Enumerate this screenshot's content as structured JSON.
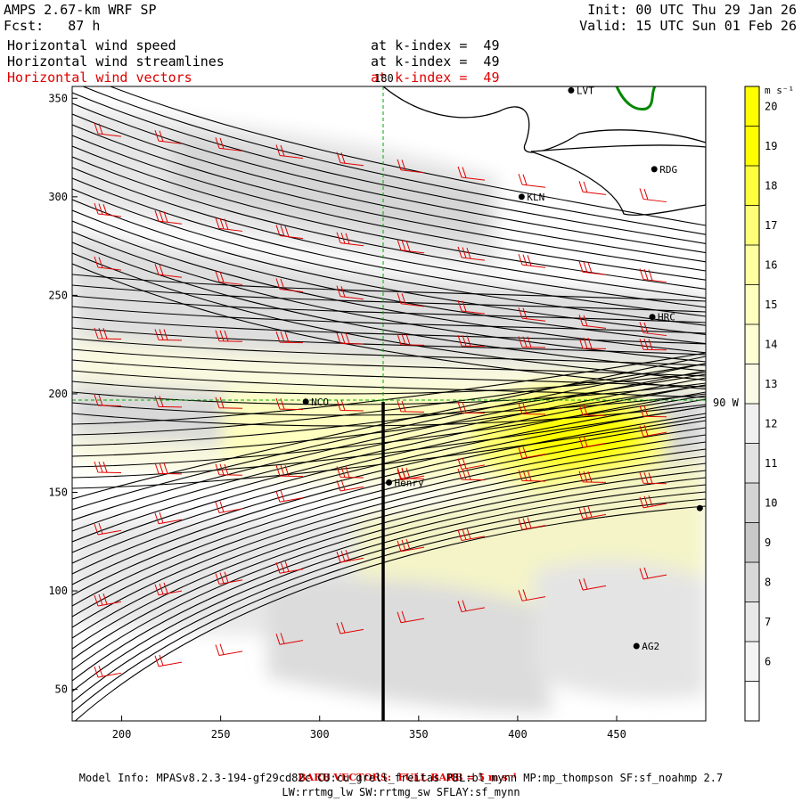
{
  "header": {
    "model": "AMPS 2.67-km WRF SP",
    "init": "Init: 00 UTC Thu 29 Jan 26",
    "fcst": "Fcst:   87 h",
    "valid": "Valid: 15 UTC Sun 01 Feb 26",
    "line1_name": "Horizontal wind speed",
    "line1_level": "at k-index =  49",
    "line2_name": "Horizontal wind streamlines",
    "line2_level": "at k-index =  49",
    "line3_name": "Horizontal wind vectors",
    "line3_level": "at k-index =  49"
  },
  "map": {
    "x_ticks": [
      "200",
      "250",
      "300",
      "350",
      "400",
      "450"
    ],
    "y_ticks": [
      "350",
      "300",
      "250",
      "200",
      "150",
      "100",
      "50"
    ],
    "meridian_label": "180",
    "parallel_label": "90 W",
    "stations": [
      {
        "name": "LVT",
        "x": 427,
        "y": 354
      },
      {
        "name": "RDG",
        "x": 469,
        "y": 314
      },
      {
        "name": "KLN",
        "x": 402,
        "y": 300
      },
      {
        "name": "HRC",
        "x": 468,
        "y": 239
      },
      {
        "name": "NCO",
        "x": 293,
        "y": 196
      },
      {
        "name": "Henry",
        "x": 335,
        "y": 155
      },
      {
        "name": "AG2",
        "x": 460,
        "y": 72
      },
      {
        "name": "",
        "x": 492,
        "y": 142
      }
    ]
  },
  "colorbar": {
    "unit": "m s⁻¹",
    "labels": [
      "20",
      "19",
      "18",
      "17",
      "16",
      "15",
      "14",
      "13",
      "12",
      "11",
      "10",
      "9",
      "8",
      "7",
      "6"
    ],
    "colors": [
      "#ffff00",
      "#ffff00",
      "#ffff40",
      "#ffff78",
      "#ffffa0",
      "#ffffbe",
      "#ffffd4",
      "#fafae6",
      "#f0f0f0",
      "#e2e2e2",
      "#d4d4d4",
      "#c8c8c8",
      "#d8d8d8",
      "#e8e8e8",
      "#f4f4f4",
      "#ffffff"
    ]
  },
  "footer": {
    "barb_note": "BARB VECTORS:  FULL BARB = 5 m s⁻¹",
    "model_info": "Model Info: MPASv8.2.3-194-gf29cd82c CU:cu_grell_freitas PBL:bl_mynn MP:mp_thompson SF:sf_noahmp 2.7",
    "model_info2": "LW:rrtmg_lw SW:rrtmg_sw SFLAY:sf_mynn"
  }
}
